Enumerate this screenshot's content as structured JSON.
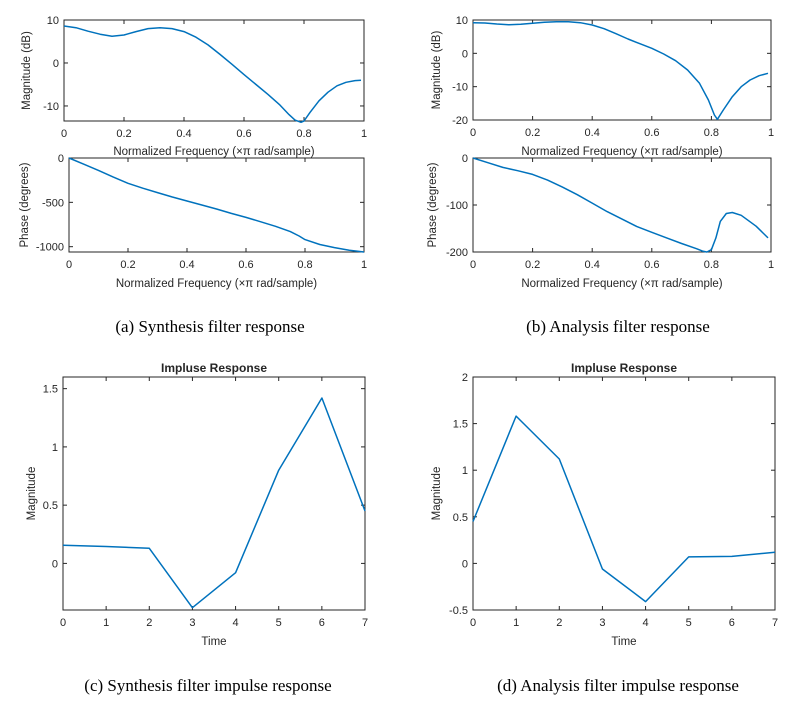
{
  "series_color": "#0072bd",
  "captions": {
    "a": "(a) Synthesis filter response",
    "b": "(b) Analysis filter response",
    "c": "(c) Synthesis filter impulse response",
    "d": "(d) Analysis filter impulse response"
  },
  "chart_data": [
    {
      "id": "synth-magnitude",
      "type": "line",
      "title": "",
      "xlabel": "Normalized Frequency  (×π rad/sample)",
      "ylabel": "Magnitude (dB)",
      "xlim": [
        0,
        1
      ],
      "ylim": [
        -13.5,
        10
      ],
      "xticks": [
        0,
        0.2,
        0.4,
        0.6,
        0.8,
        1
      ],
      "xtick_labels": [
        "0",
        "0.2",
        "0.4",
        "0.6",
        "0.8",
        "1"
      ],
      "yticks": [
        -10,
        0,
        10
      ],
      "ytick_labels": [
        "-10",
        "0",
        "10"
      ],
      "x": [
        0,
        0.04,
        0.08,
        0.12,
        0.16,
        0.2,
        0.24,
        0.28,
        0.32,
        0.36,
        0.4,
        0.44,
        0.48,
        0.52,
        0.56,
        0.6,
        0.64,
        0.68,
        0.72,
        0.75,
        0.77,
        0.79,
        0.8,
        0.82,
        0.85,
        0.88,
        0.91,
        0.94,
        0.97,
        0.99
      ],
      "y": [
        8.6,
        8.2,
        7.4,
        6.7,
        6.2,
        6.5,
        7.3,
        8.0,
        8.2,
        8.0,
        7.3,
        6.0,
        4.2,
        2.0,
        -0.3,
        -2.7,
        -5.0,
        -7.3,
        -9.8,
        -12.0,
        -13.3,
        -13.8,
        -13.5,
        -11.5,
        -8.8,
        -6.8,
        -5.3,
        -4.5,
        -4.1,
        -4.0
      ]
    },
    {
      "id": "synth-phase",
      "type": "line",
      "title": "",
      "xlabel": "Normalized Frequency  (×π rad/sample)",
      "ylabel": "Phase (degrees)",
      "xlim": [
        0,
        1
      ],
      "ylim": [
        -1060,
        0
      ],
      "xticks": [
        0,
        0.2,
        0.4,
        0.6,
        0.8,
        1
      ],
      "xtick_labels": [
        "0",
        "0.2",
        "0.4",
        "0.6",
        "0.8",
        "1"
      ],
      "yticks": [
        -1000,
        -500,
        0
      ],
      "ytick_labels": [
        "-1000",
        "-500",
        "0"
      ],
      "x": [
        0,
        0.05,
        0.1,
        0.15,
        0.2,
        0.25,
        0.3,
        0.35,
        0.4,
        0.45,
        0.5,
        0.55,
        0.6,
        0.65,
        0.7,
        0.75,
        0.78,
        0.8,
        0.85,
        0.9,
        0.95,
        1.0
      ],
      "y": [
        0,
        -70,
        -140,
        -215,
        -285,
        -340,
        -390,
        -440,
        -485,
        -530,
        -575,
        -625,
        -670,
        -720,
        -770,
        -830,
        -880,
        -920,
        -975,
        -1010,
        -1040,
        -1060
      ]
    },
    {
      "id": "synth-impulse",
      "type": "line",
      "title": "Impluse Response",
      "xlabel": "Time",
      "ylabel": "Magnitude",
      "xlim": [
        0,
        7
      ],
      "ylim": [
        -0.4,
        1.6
      ],
      "xticks": [
        0,
        1,
        2,
        3,
        4,
        5,
        6,
        7
      ],
      "xtick_labels": [
        "0",
        "1",
        "2",
        "3",
        "4",
        "5",
        "6",
        "7"
      ],
      "yticks": [
        0,
        0.5,
        1,
        1.5
      ],
      "ytick_labels": [
        "0",
        "0.5",
        "1",
        "1.5"
      ],
      "x": [
        0,
        1,
        2,
        3,
        4,
        5,
        6,
        7
      ],
      "y": [
        0.155,
        0.145,
        0.13,
        -0.38,
        -0.08,
        0.8,
        1.42,
        0.45
      ]
    },
    {
      "id": "analysis-magnitude",
      "type": "line",
      "title": "",
      "xlabel": "Normalized Frequency  (×π rad/sample)",
      "ylabel": "Magnitude (dB)",
      "xlim": [
        0,
        1
      ],
      "ylim": [
        -20,
        10
      ],
      "xticks": [
        0,
        0.2,
        0.4,
        0.6,
        0.8,
        1
      ],
      "xtick_labels": [
        "0",
        "0.2",
        "0.4",
        "0.6",
        "0.8",
        "1"
      ],
      "yticks": [
        -20,
        -10,
        0,
        10
      ],
      "ytick_labels": [
        "-20",
        "-10",
        "0",
        "10"
      ],
      "x": [
        0,
        0.04,
        0.08,
        0.12,
        0.16,
        0.2,
        0.24,
        0.28,
        0.32,
        0.36,
        0.4,
        0.44,
        0.48,
        0.52,
        0.56,
        0.6,
        0.64,
        0.68,
        0.72,
        0.76,
        0.79,
        0.81,
        0.82,
        0.84,
        0.87,
        0.9,
        0.93,
        0.96,
        0.99
      ],
      "y": [
        9.2,
        9.1,
        8.8,
        8.6,
        8.7,
        9.0,
        9.3,
        9.5,
        9.5,
        9.2,
        8.5,
        7.4,
        5.9,
        4.3,
        2.9,
        1.5,
        -0.2,
        -2.2,
        -5.0,
        -9.0,
        -14.0,
        -18.5,
        -19.8,
        -17.0,
        -13.0,
        -10.0,
        -8.0,
        -6.7,
        -6.0
      ]
    },
    {
      "id": "analysis-phase",
      "type": "line",
      "title": "",
      "xlabel": "Normalized Frequency  (×π rad/sample)",
      "ylabel": "Phase (degrees)",
      "xlim": [
        0,
        1
      ],
      "ylim": [
        -200,
        0
      ],
      "xticks": [
        0,
        0.2,
        0.4,
        0.6,
        0.8,
        1
      ],
      "xtick_labels": [
        "0",
        "0.2",
        "0.4",
        "0.6",
        "0.8",
        "1"
      ],
      "yticks": [
        -200,
        -100,
        0
      ],
      "ytick_labels": [
        "-200",
        "-100",
        "0"
      ],
      "x": [
        0,
        0.05,
        0.1,
        0.15,
        0.2,
        0.25,
        0.3,
        0.35,
        0.4,
        0.45,
        0.5,
        0.55,
        0.6,
        0.65,
        0.7,
        0.75,
        0.77,
        0.785,
        0.8,
        0.815,
        0.83,
        0.85,
        0.87,
        0.9,
        0.95,
        0.99
      ],
      "y": [
        0,
        -10,
        -20,
        -27,
        -35,
        -47,
        -62,
        -78,
        -96,
        -114,
        -130,
        -146,
        -158,
        -170,
        -182,
        -193,
        -198,
        -200,
        -195,
        -170,
        -135,
        -118,
        -116,
        -122,
        -145,
        -170
      ]
    },
    {
      "id": "analysis-impulse",
      "type": "line",
      "title": "Impluse Response",
      "xlabel": "Time",
      "ylabel": "Magnitude",
      "xlim": [
        0,
        7
      ],
      "ylim": [
        -0.5,
        2
      ],
      "xticks": [
        0,
        1,
        2,
        3,
        4,
        5,
        6,
        7
      ],
      "xtick_labels": [
        "0",
        "1",
        "2",
        "3",
        "4",
        "5",
        "6",
        "7"
      ],
      "yticks": [
        -0.5,
        0,
        0.5,
        1,
        1.5,
        2
      ],
      "ytick_labels": [
        "-0.5",
        "0",
        "0.5",
        "1",
        "1.5",
        "2"
      ],
      "x": [
        0,
        1,
        2,
        3,
        4,
        5,
        6,
        7
      ],
      "y": [
        0.45,
        1.58,
        1.12,
        -0.06,
        -0.41,
        0.07,
        0.075,
        0.12
      ]
    }
  ]
}
